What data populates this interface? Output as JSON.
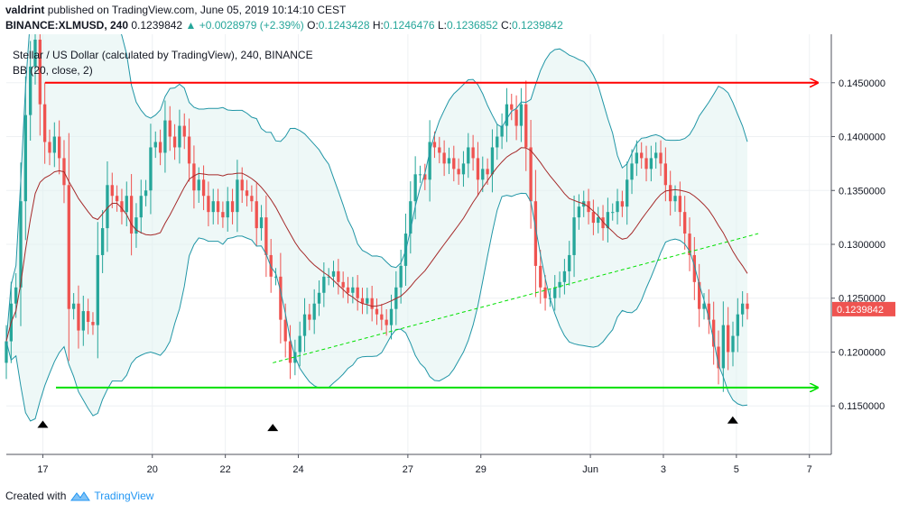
{
  "header": {
    "author": "valdrint",
    "published_text": "published on TradingView.com, June 05, 2019 10:14:10 CEST"
  },
  "ticker": {
    "symbol": "BINANCE:XLMUSD, 240",
    "last": "0.1239842",
    "change": "+0.0028979 (+2.39%)",
    "o_label": "O:",
    "o_value": "0.1243428",
    "h_label": "H:",
    "h_value": "0.1246476",
    "l_label": "L:",
    "l_value": "0.1236852",
    "c_label": "C:",
    "c_value": "0.1239842"
  },
  "legend": {
    "series_title": "Stellar / US Dollar (calculated by TradingView), 240, BINANCE",
    "indicator": "BB (20, close, 2)"
  },
  "colors": {
    "up": "#26a69a",
    "down": "#ef5350",
    "bb_band": "#2196a6",
    "bb_basis": "#a52a2a",
    "bb_fill": "#e0f2f1",
    "resistance": "#ff0000",
    "support": "#00e000",
    "trend": "#00e000"
  },
  "footer": {
    "created_with": "Created with",
    "brand": "TradingView"
  },
  "chart_data": {
    "type": "candlestick",
    "symbol": "BINANCE:XLMUSD",
    "interval": "240",
    "y_range": [
      0.1105,
      0.1495
    ],
    "x_range": [
      16.0,
      38.6
    ],
    "y_ticks": [
      "0.1150000",
      "0.1200000",
      "0.1250000",
      "0.1300000",
      "0.1350000",
      "0.1400000",
      "0.1450000"
    ],
    "x_ticks": [
      {
        "t": 17,
        "label": "17"
      },
      {
        "t": 20,
        "label": "20"
      },
      {
        "t": 22,
        "label": "22"
      },
      {
        "t": 24,
        "label": "24"
      },
      {
        "t": 27,
        "label": "27"
      },
      {
        "t": 29,
        "label": "29"
      },
      {
        "t": 32,
        "label": "Jun"
      },
      {
        "t": 34,
        "label": "3"
      },
      {
        "t": 36,
        "label": "5"
      },
      {
        "t": 38,
        "label": "7"
      }
    ],
    "last_price": "0.1239842",
    "closes": [
      0.121,
      0.1245,
      0.126,
      0.134,
      0.142,
      0.1465,
      0.149,
      0.143,
      0.1395,
      0.1385,
      0.14,
      0.138,
      0.1355,
      0.124,
      0.1245,
      0.122,
      0.1238,
      0.1228,
      0.1225,
      0.129,
      0.1315,
      0.1355,
      0.1345,
      0.134,
      0.133,
      0.1345,
      0.131,
      0.1325,
      0.1345,
      0.135,
      0.139,
      0.1395,
      0.1385,
      0.1415,
      0.14,
      0.139,
      0.141,
      0.14,
      0.1375,
      0.135,
      0.136,
      0.1345,
      0.133,
      0.134,
      0.133,
      0.1325,
      0.134,
      0.133,
      0.136,
      0.135,
      0.1345,
      0.134,
      0.1315,
      0.1325,
      0.129,
      0.127,
      0.127,
      0.123,
      0.121,
      0.119,
      0.12,
      0.1215,
      0.1235,
      0.123,
      0.1245,
      0.1255,
      0.127,
      0.127,
      0.1275,
      0.1265,
      0.126,
      0.1255,
      0.126,
      0.125,
      0.1245,
      0.125,
      0.124,
      0.1235,
      0.123,
      0.1225,
      0.124,
      0.126,
      0.128,
      0.131,
      0.134,
      0.1365,
      0.1365,
      0.136,
      0.1395,
      0.139,
      0.1385,
      0.1375,
      0.138,
      0.137,
      0.1365,
      0.1375,
      0.139,
      0.138,
      0.136,
      0.137,
      0.1365,
      0.139,
      0.14,
      0.141,
      0.143,
      0.1425,
      0.141,
      0.143,
      0.139,
      0.134,
      0.128,
      0.126,
      0.125,
      0.125,
      0.126,
      0.1265,
      0.1275,
      0.129,
      0.1325,
      0.1335,
      0.134,
      0.133,
      0.132,
      0.1325,
      0.1315,
      0.133,
      0.133,
      0.134,
      0.1335,
      0.136,
      0.1375,
      0.1385,
      0.138,
      0.137,
      0.138,
      0.1385,
      0.1375,
      0.1355,
      0.134,
      0.1345,
      0.133,
      0.131,
      0.129,
      0.1265,
      0.124,
      0.1245,
      0.123,
      0.1205,
      0.1185,
      0.1225,
      0.12,
      0.1215,
      0.1235,
      0.1245,
      0.124
    ],
    "bollinger": {
      "length": 20,
      "source": "close",
      "mult": 2
    },
    "annotations": {
      "resistance_price": 0.145,
      "support_price": 0.1167,
      "trend_from": {
        "t": 23.3,
        "price": 0.119
      },
      "trend_to": {
        "t": 36.6,
        "price": 0.131
      },
      "markers": [
        {
          "t": 17.0,
          "price": 0.1133
        },
        {
          "t": 23.3,
          "price": 0.113
        },
        {
          "t": 35.9,
          "price": 0.1137
        }
      ]
    }
  }
}
